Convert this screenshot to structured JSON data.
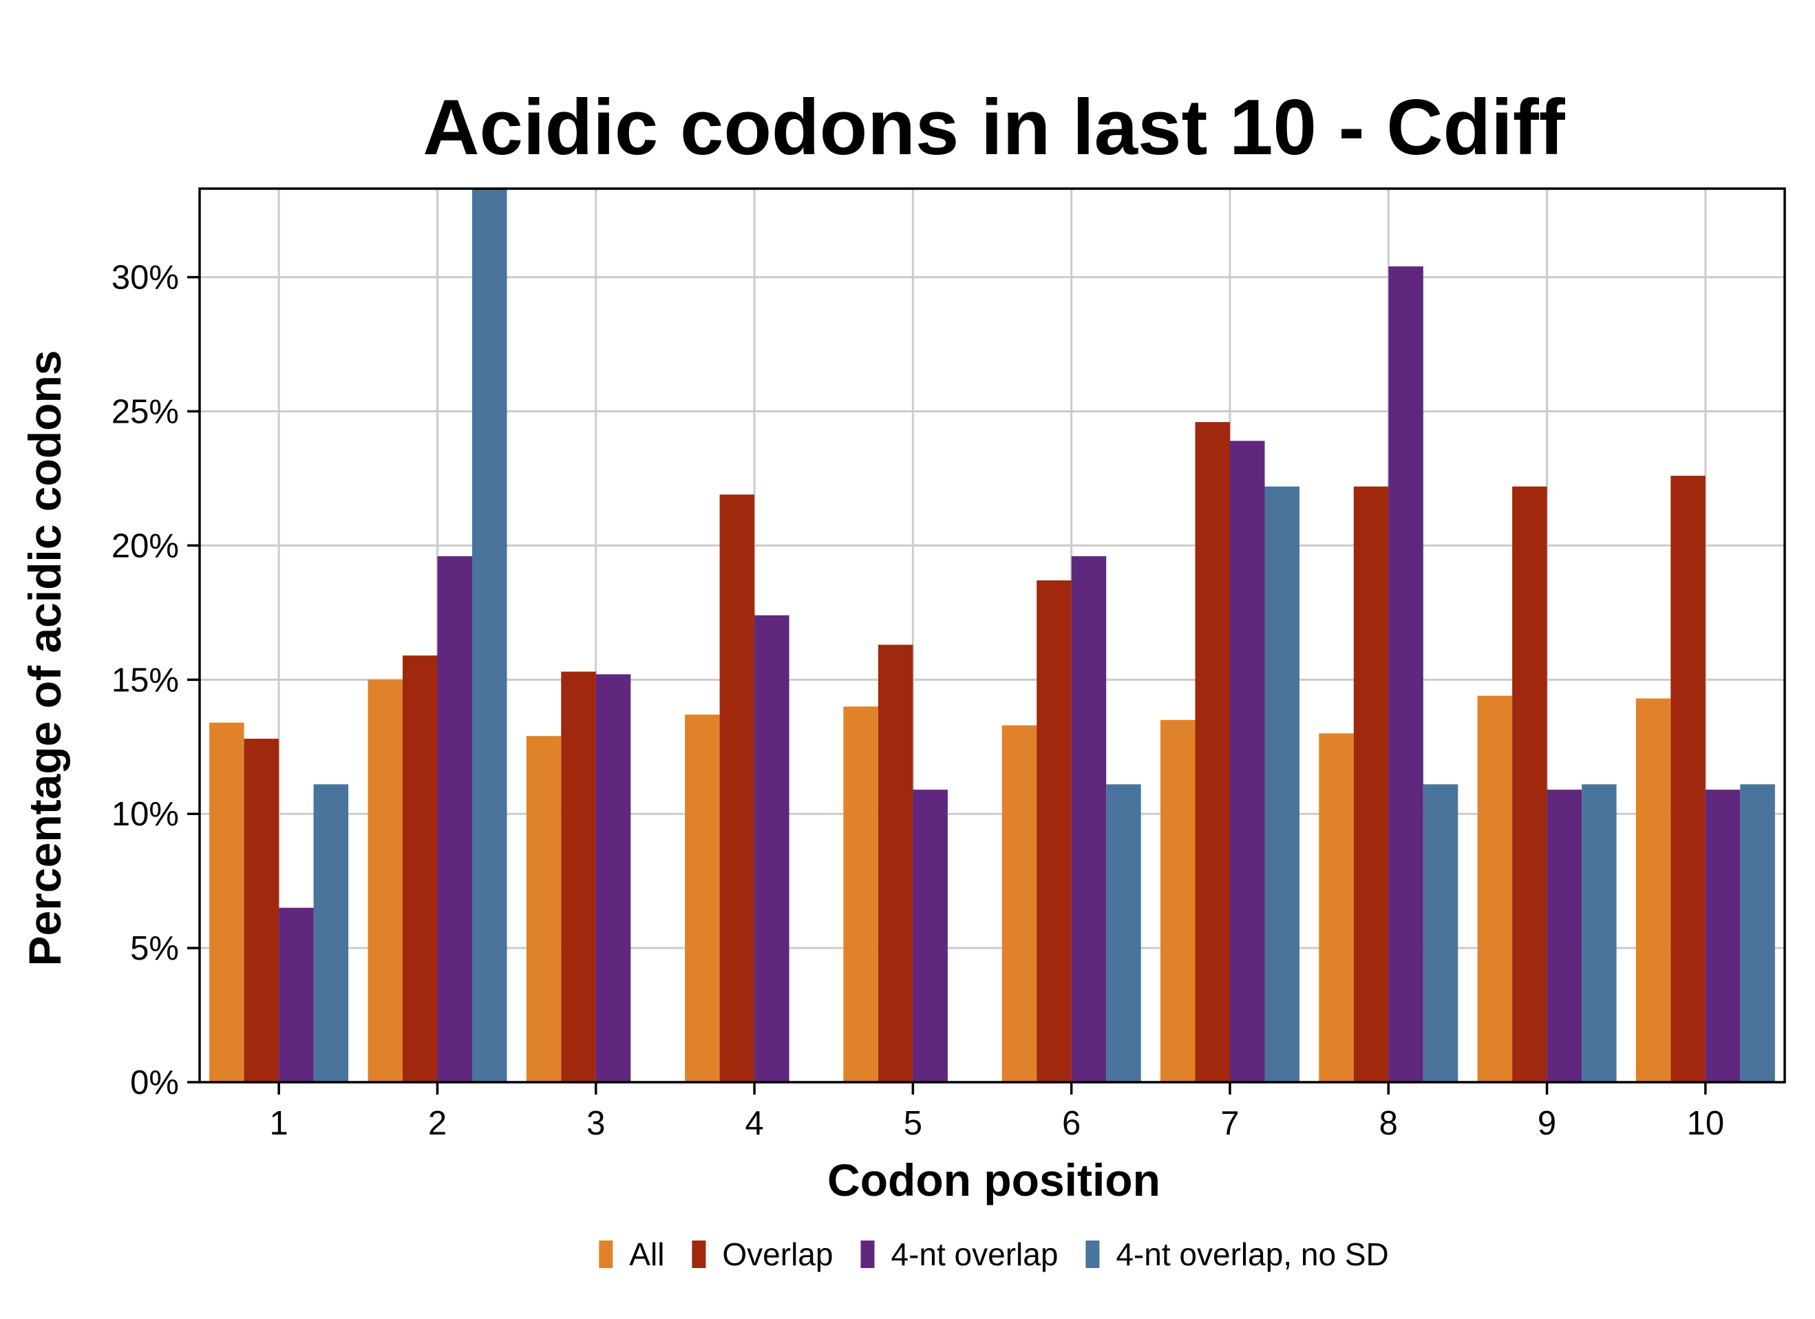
{
  "chart_data": {
    "type": "bar",
    "title": "Acidic codons in last 10 - Cdiff",
    "xlabel": "Codon position",
    "ylabel": "Percentage of acidic codons",
    "categories": [
      "1",
      "2",
      "3",
      "4",
      "5",
      "6",
      "7",
      "8",
      "9",
      "10"
    ],
    "ylim": [
      0,
      33.3
    ],
    "yticks": [
      0,
      5,
      10,
      15,
      20,
      25,
      30
    ],
    "ytick_labels": [
      "0%",
      "5%",
      "10%",
      "15%",
      "20%",
      "25%",
      "30%"
    ],
    "grid": true,
    "legend_position": "bottom",
    "series": [
      {
        "name": "All",
        "color": "#E0822A",
        "values": [
          13.4,
          15.0,
          12.9,
          13.7,
          14.0,
          13.3,
          13.5,
          13.0,
          14.4,
          14.3
        ]
      },
      {
        "name": "Overlap",
        "color": "#A0280C",
        "values": [
          12.8,
          15.9,
          15.3,
          21.9,
          16.3,
          18.7,
          24.6,
          22.2,
          22.2,
          22.6
        ]
      },
      {
        "name": "4-nt overlap",
        "color": "#60277E",
        "values": [
          6.5,
          19.6,
          15.2,
          17.4,
          10.9,
          19.6,
          23.9,
          30.4,
          10.9,
          10.9
        ]
      },
      {
        "name": "4-nt overlap, no SD",
        "color": "#4A749C",
        "values": [
          11.1,
          33.3,
          null,
          null,
          null,
          11.1,
          22.2,
          11.1,
          11.1,
          11.1
        ]
      }
    ]
  }
}
